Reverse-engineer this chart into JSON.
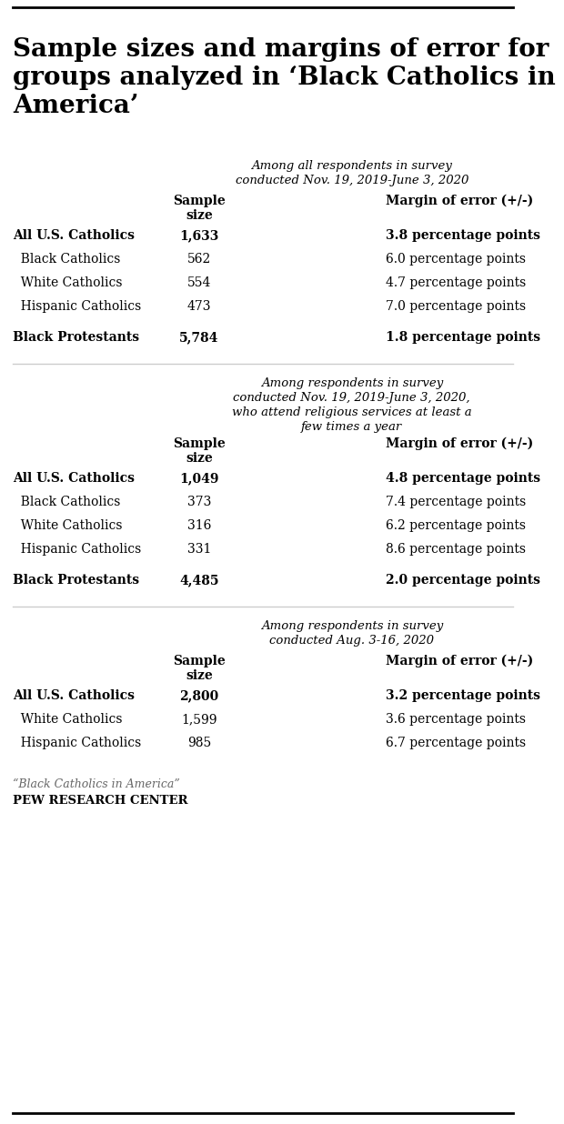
{
  "title": "Sample sizes and margins of error for\ngroups analyzed in ‘Black Catholics in\nAmerica’",
  "title_fontsize": 20,
  "background_color": "#ffffff",
  "top_line_color": "#000000",
  "bottom_line_color": "#000000",
  "section1_header": "Among all respondents in survey\nconducted Nov. 19, 2019-June 3, 2020",
  "section1_col1": "Sample\nsize",
  "section1_col2": "Margin of error (+/-)",
  "section1_rows": [
    [
      "All U.S. Catholics",
      "1,633",
      "3.8 percentage points"
    ],
    [
      "  Black Catholics",
      "562",
      "6.0 percentage points"
    ],
    [
      "  White Catholics",
      "554",
      "4.7 percentage points"
    ],
    [
      "  Hispanic Catholics",
      "473",
      "7.0 percentage points"
    ],
    [
      "Black Protestants",
      "5,784",
      "1.8 percentage points"
    ]
  ],
  "section1_bold_rows": [
    0,
    4
  ],
  "section2_header": "Among respondents in survey\nconducted Nov. 19, 2019-June 3, 2020,\nwho attend religious services at least a\nfew times a year",
  "section2_col1": "Sample\nsize",
  "section2_col2": "Margin of error (+/-)",
  "section2_rows": [
    [
      "All U.S. Catholics",
      "1,049",
      "4.8 percentage points"
    ],
    [
      "  Black Catholics",
      "373",
      "7.4 percentage points"
    ],
    [
      "  White Catholics",
      "316",
      "6.2 percentage points"
    ],
    [
      "  Hispanic Catholics",
      "331",
      "8.6 percentage points"
    ],
    [
      "Black Protestants",
      "4,485",
      "2.0 percentage points"
    ]
  ],
  "section2_bold_rows": [
    0,
    4
  ],
  "section3_header": "Among respondents in survey\nconducted Aug. 3-16, 2020",
  "section3_col1": "Sample\nsize",
  "section3_col2": "Margin of error (+/-)",
  "section3_rows": [
    [
      "All U.S. Catholics",
      "2,800",
      "3.2 percentage points"
    ],
    [
      "  White Catholics",
      "1,599",
      "3.6 percentage points"
    ],
    [
      "  Hispanic Catholics",
      "985",
      "6.7 percentage points"
    ]
  ],
  "section3_bold_rows": [
    0
  ],
  "source_italic": "“Black Catholics in America”",
  "source_bold": "PEW RESEARCH CENTER"
}
